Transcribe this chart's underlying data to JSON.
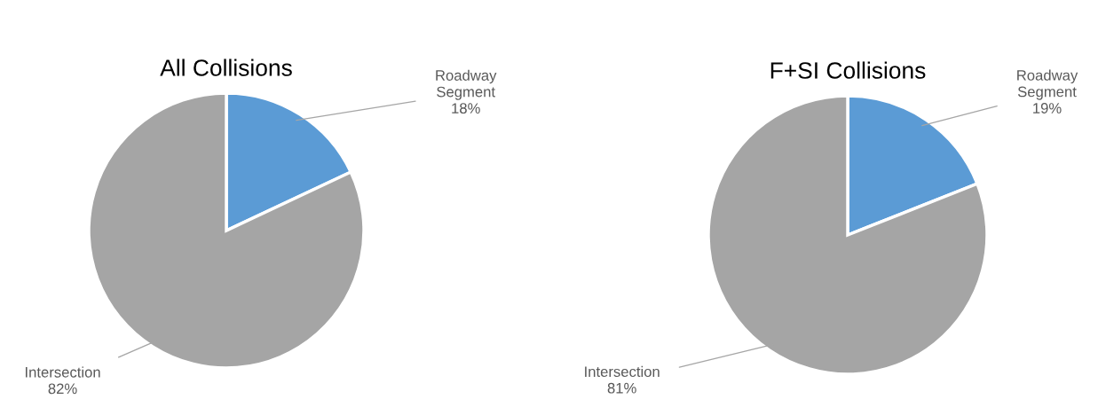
{
  "chart_data": [
    {
      "type": "pie",
      "title": "All Collisions",
      "categories": [
        "Roadway Segment",
        "Intersection"
      ],
      "values": [
        18,
        82
      ],
      "colors": [
        "#5b9bd5",
        "#a5a5a5"
      ],
      "value_labels": [
        "18%",
        "82%"
      ]
    },
    {
      "type": "pie",
      "title": "F+SI Collisions",
      "categories": [
        "Roadway Segment",
        "Intersection"
      ],
      "values": [
        19,
        81
      ],
      "colors": [
        "#5b9bd5",
        "#a5a5a5"
      ],
      "value_labels": [
        "19%",
        "81%"
      ]
    }
  ]
}
